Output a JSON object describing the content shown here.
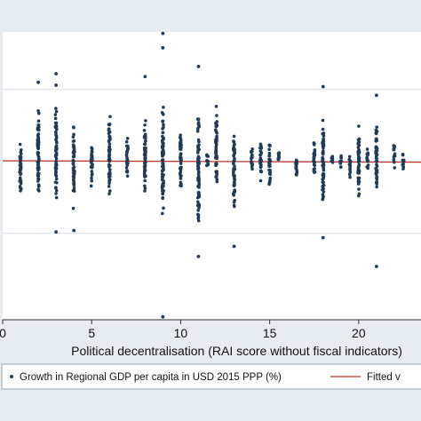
{
  "chart_data": {
    "type": "scatter",
    "title": "",
    "xlabel": "Political decentralisation (RAI score without fiscal indicators)",
    "ylabel": "",
    "xlim": [
      0,
      23.5
    ],
    "ylim": [
      -11,
      9
    ],
    "x_ticks": [
      0,
      5,
      10,
      15,
      20
    ],
    "y_grid": [
      -5,
      0,
      5
    ],
    "grid": true,
    "legend_position": "bottom",
    "series": [
      {
        "name": "Growth in Regional GDP per capita in USD 2015 PPP (%)",
        "kind": "points",
        "color": "#1f3a5a",
        "columns": [
          {
            "x": 1,
            "ymin": -3.4,
            "ymax": 2.2,
            "outliers": []
          },
          {
            "x": 2,
            "ymin": -3.8,
            "ymax": 5.0,
            "outliers": [
              5.5
            ]
          },
          {
            "x": 3,
            "ymin": -3.6,
            "ymax": 4.6,
            "outliers": [
              6.1,
              5.3,
              -4.9
            ]
          },
          {
            "x": 4,
            "ymin": -3.8,
            "ymax": 3.3,
            "outliers": [
              -4.8
            ]
          },
          {
            "x": 5,
            "ymin": -1.9,
            "ymax": 1.9,
            "outliers": []
          },
          {
            "x": 6,
            "ymin": -3.6,
            "ymax": 4.4,
            "outliers": []
          },
          {
            "x": 7,
            "ymin": -1.5,
            "ymax": 2.0,
            "outliers": []
          },
          {
            "x": 8,
            "ymin": -3.3,
            "ymax": 4.0,
            "outliers": [
              5.9
            ]
          },
          {
            "x": 9,
            "ymin": -4.9,
            "ymax": 5.0,
            "outliers": [
              8.9,
              7.9,
              -10.8
            ]
          },
          {
            "x": 10,
            "ymin": -3.0,
            "ymax": 3.3,
            "outliers": []
          },
          {
            "x": 11,
            "ymin": -6.1,
            "ymax": 4.5,
            "outliers": [
              6.6,
              -6.6
            ]
          },
          {
            "x": 11.5,
            "ymin": -0.6,
            "ymax": 0.8,
            "outliers": []
          },
          {
            "x": 12,
            "ymin": -3.0,
            "ymax": 4.4,
            "outliers": []
          },
          {
            "x": 13,
            "ymin": -4.4,
            "ymax": 2.8,
            "outliers": [
              -5.9
            ]
          },
          {
            "x": 14,
            "ymin": -1.1,
            "ymax": 1.6,
            "outliers": []
          },
          {
            "x": 14.5,
            "ymin": -1.8,
            "ymax": 1.8,
            "outliers": []
          },
          {
            "x": 15,
            "ymin": -2.3,
            "ymax": 2.0,
            "outliers": []
          },
          {
            "x": 15.5,
            "ymin": -0.3,
            "ymax": 0.9,
            "outliers": []
          },
          {
            "x": 16.5,
            "ymin": -1.3,
            "ymax": 0.7,
            "outliers": []
          },
          {
            "x": 17.5,
            "ymin": -1.6,
            "ymax": 2.0,
            "outliers": []
          },
          {
            "x": 18,
            "ymin": -4.4,
            "ymax": 4.0,
            "outliers": [
              5.2,
              -5.3
            ]
          },
          {
            "x": 18.5,
            "ymin": -0.3,
            "ymax": 0.6,
            "outliers": []
          },
          {
            "x": 19,
            "ymin": -0.7,
            "ymax": 0.6,
            "outliers": []
          },
          {
            "x": 19.5,
            "ymin": -1.3,
            "ymax": 0.8,
            "outliers": []
          },
          {
            "x": 20,
            "ymin": -3.2,
            "ymax": 3.5,
            "outliers": []
          },
          {
            "x": 20.5,
            "ymin": -1.0,
            "ymax": 1.2,
            "outliers": []
          },
          {
            "x": 21,
            "ymin": -3.2,
            "ymax": 3.6,
            "outliers": [
              4.6,
              -7.3
            ]
          },
          {
            "x": 22,
            "ymin": -0.6,
            "ymax": 1.5,
            "outliers": []
          },
          {
            "x": 22.5,
            "ymin": -0.8,
            "ymax": 0.7,
            "outliers": []
          }
        ]
      },
      {
        "name": "Fitted v",
        "kind": "line",
        "color": "#c0392b",
        "x": [
          0,
          23.5
        ],
        "y": [
          0.05,
          -0.05
        ]
      }
    ],
    "legend": [
      "Growth in Regional GDP per capita in USD 2015 PPP (%)",
      "Fitted v"
    ]
  }
}
